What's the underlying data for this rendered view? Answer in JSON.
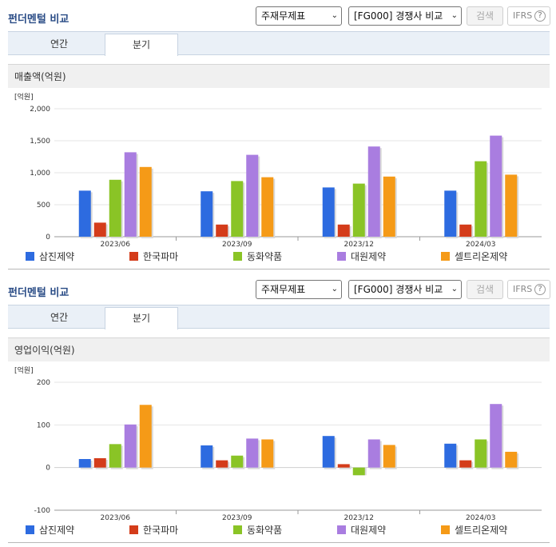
{
  "sections": [
    {
      "title": "펀더멘털 비교",
      "select_statement": "주재무제표",
      "select_compare": "[FG000] 경쟁사 비교",
      "search_label": "검색",
      "ifrs_label": "IFRS",
      "ifrs_help": "?",
      "tabs": [
        "연간",
        "분기"
      ],
      "active_tab": "분기",
      "metric_title": "매출액(억원)",
      "unit_label": "[억원]"
    },
    {
      "title": "펀더멘털 비교",
      "select_statement": "주재무제표",
      "select_compare": "[FG000] 경쟁사 비교",
      "search_label": "검색",
      "ifrs_label": "IFRS",
      "ifrs_help": "?",
      "tabs": [
        "연간",
        "분기"
      ],
      "active_tab": "분기",
      "metric_title": "영업이익(억원)",
      "unit_label": "[억원]"
    }
  ],
  "colors": {
    "삼진제약": "#2d6be0",
    "한국파마": "#d43c1a",
    "동화약품": "#8ac426",
    "대원제약": "#a97de0",
    "셀트리온제약": "#f59a17"
  },
  "chart_data": [
    {
      "type": "bar",
      "title": "매출액(억원)",
      "ylabel": "[억원]",
      "categories": [
        "2023/06",
        "2023/09",
        "2023/12",
        "2024/03"
      ],
      "yticks": [
        "0",
        "500",
        "1,000",
        "1,500",
        "2,000"
      ],
      "ylim": [
        0,
        2000
      ],
      "grid": true,
      "legend": "bottom",
      "series": [
        {
          "name": "삼진제약",
          "values": [
            720,
            710,
            770,
            720
          ]
        },
        {
          "name": "한국파마",
          "values": [
            220,
            190,
            190,
            190
          ]
        },
        {
          "name": "동화약품",
          "values": [
            890,
            870,
            830,
            1180
          ]
        },
        {
          "name": "대원제약",
          "values": [
            1320,
            1280,
            1410,
            1580
          ]
        },
        {
          "name": "셀트리온제약",
          "values": [
            1090,
            930,
            940,
            970
          ]
        }
      ]
    },
    {
      "type": "bar",
      "title": "영업이익(억원)",
      "ylabel": "[억원]",
      "categories": [
        "2023/06",
        "2023/09",
        "2023/12",
        "2024/03"
      ],
      "yticks": [
        "-100",
        "0",
        "100",
        "200"
      ],
      "ylim": [
        -100,
        200
      ],
      "grid": true,
      "legend": "bottom",
      "series": [
        {
          "name": "삼진제약",
          "values": [
            20,
            52,
            74,
            56
          ]
        },
        {
          "name": "한국파마",
          "values": [
            22,
            17,
            8,
            17
          ]
        },
        {
          "name": "동화약품",
          "values": [
            55,
            28,
            -18,
            66
          ]
        },
        {
          "name": "대원제약",
          "values": [
            101,
            68,
            66,
            149
          ]
        },
        {
          "name": "셀트리온제약",
          "values": [
            147,
            66,
            53,
            37
          ]
        }
      ]
    }
  ]
}
